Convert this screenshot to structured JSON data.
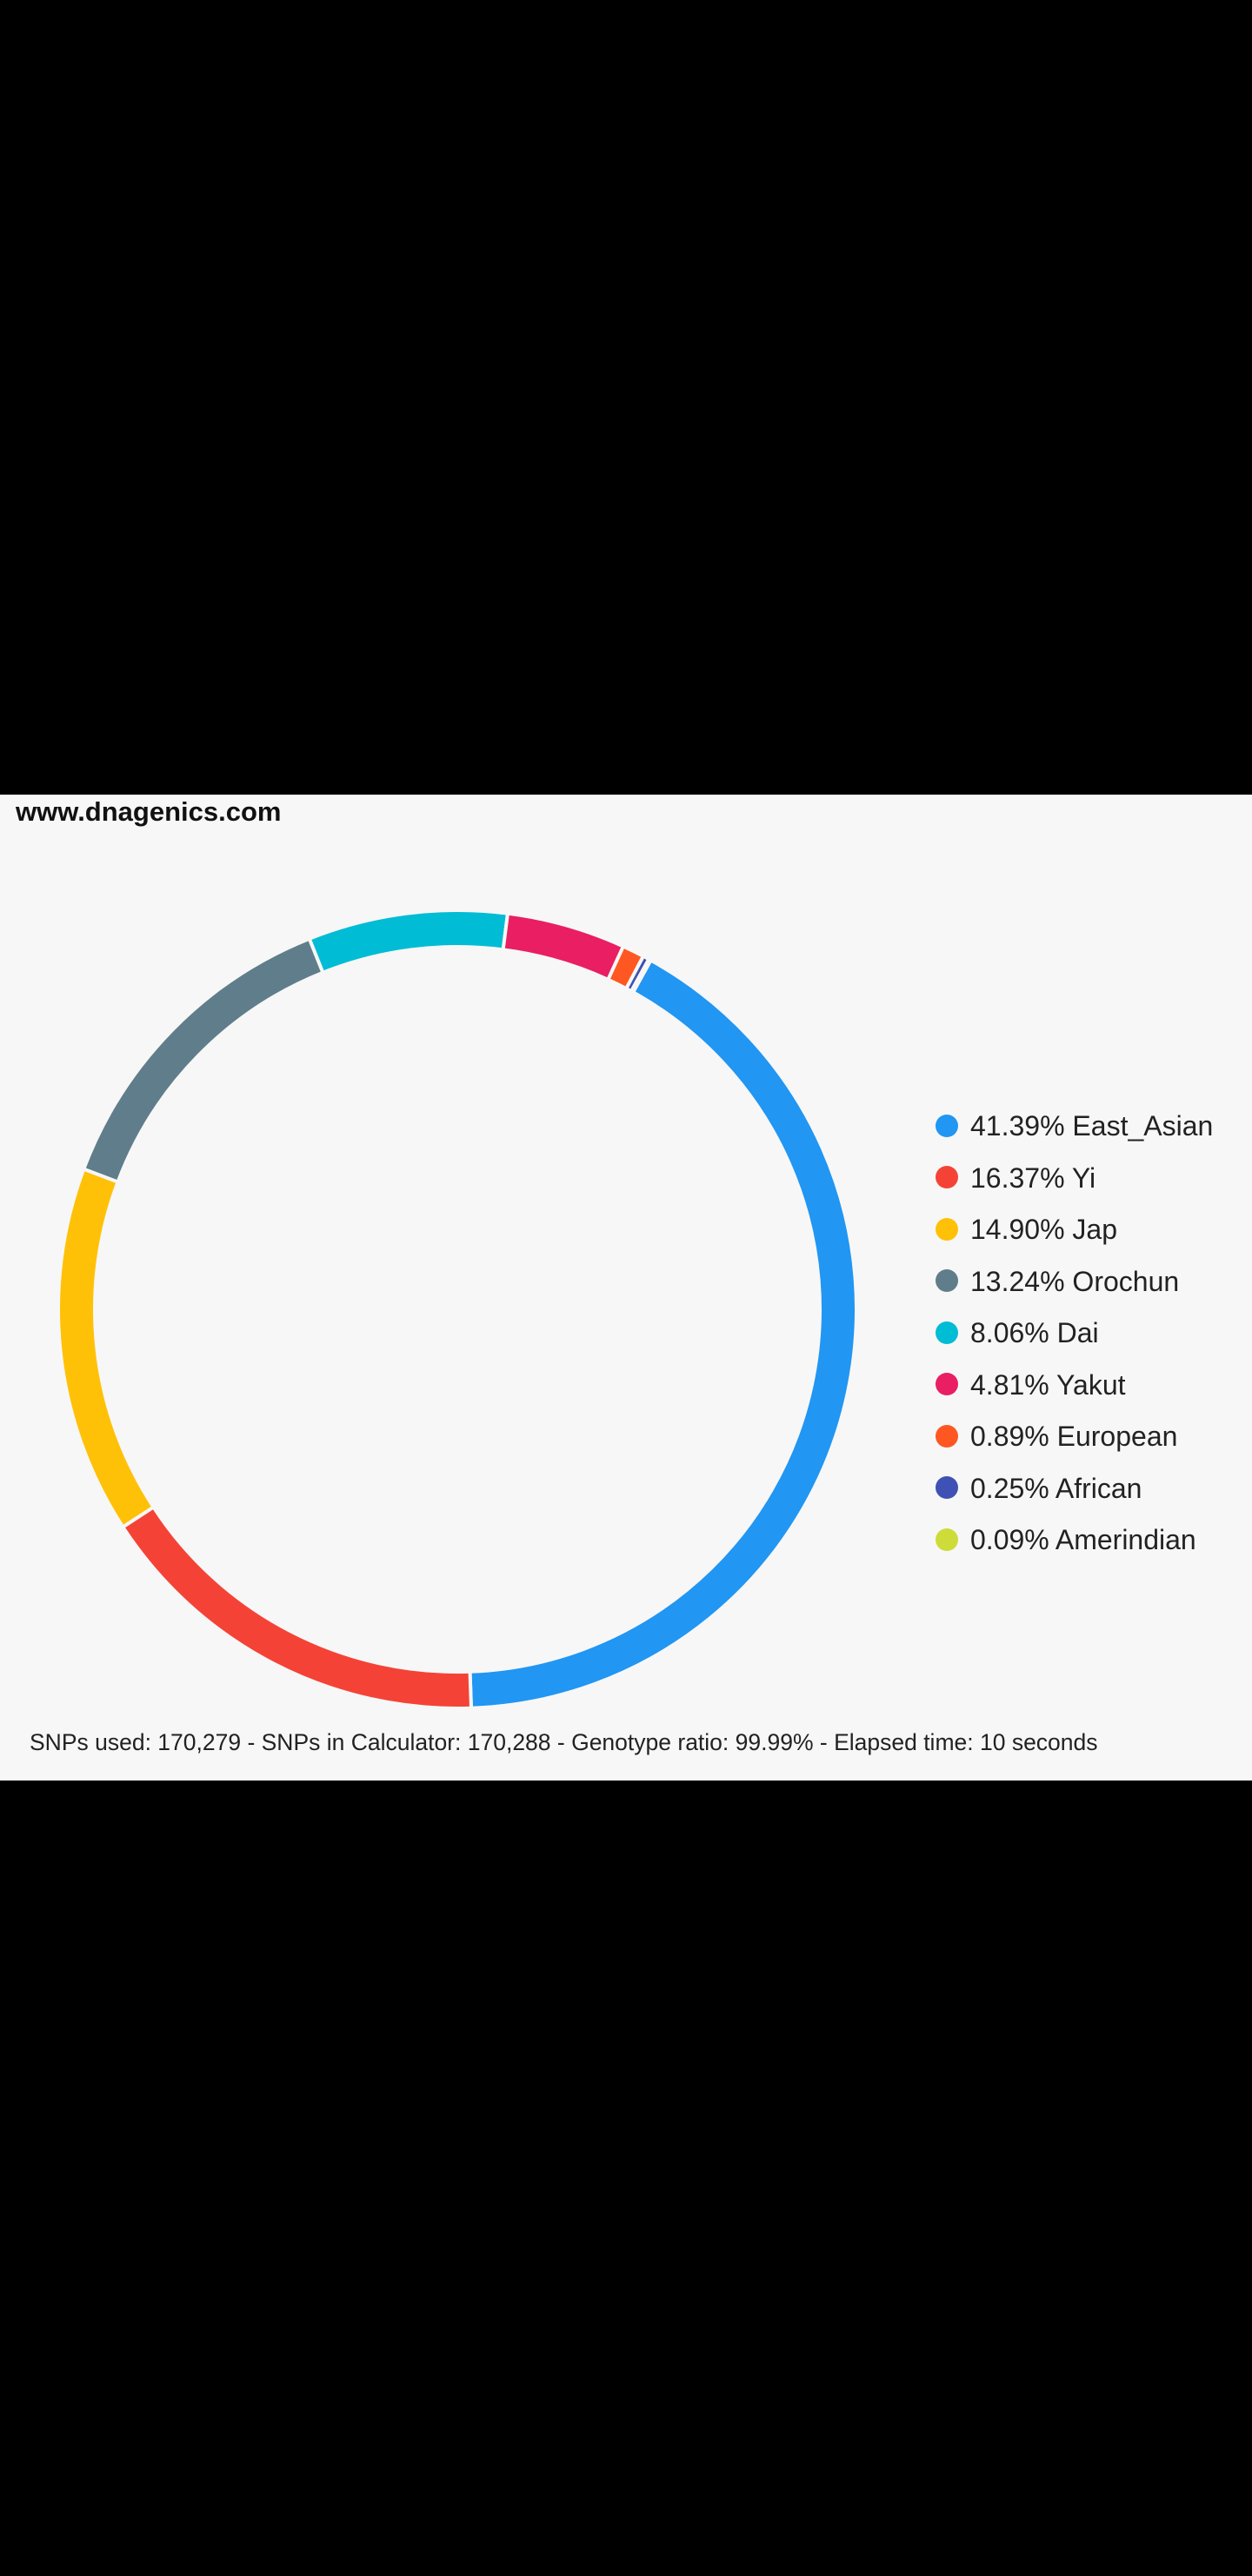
{
  "header": {
    "site_url": "www.dnagenics.com"
  },
  "chart_data": {
    "type": "pie",
    "variant": "donut",
    "start_angle_deg": 29,
    "direction": "clockwise",
    "legend_placement": "right",
    "series": [
      {
        "name": "East_Asian",
        "value": 41.39,
        "label": "41.39% East_Asian",
        "color": "#2196f3"
      },
      {
        "name": "Yi",
        "value": 16.37,
        "label": "16.37% Yi",
        "color": "#f44336"
      },
      {
        "name": "Jap",
        "value": 14.9,
        "label": "14.90% Jap",
        "color": "#ffc107"
      },
      {
        "name": "Orochun",
        "value": 13.24,
        "label": "13.24% Orochun",
        "color": "#607d8b"
      },
      {
        "name": "Dai",
        "value": 8.06,
        "label": "8.06% Dai",
        "color": "#00bcd4"
      },
      {
        "name": "Yakut",
        "value": 4.81,
        "label": "4.81% Yakut",
        "color": "#e91e63"
      },
      {
        "name": "European",
        "value": 0.89,
        "label": "0.89% European",
        "color": "#ff5722"
      },
      {
        "name": "African",
        "value": 0.25,
        "label": "0.25% African",
        "color": "#3f51b5"
      },
      {
        "name": "Amerindian",
        "value": 0.09,
        "label": "0.09% Amerindian",
        "color": "#cddc39"
      }
    ]
  },
  "footer": {
    "stats": "SNPs used: 170,279 - SNPs in Calculator: 170,288 - Genotype ratio: 99.99% - Elapsed time: 10 seconds"
  }
}
